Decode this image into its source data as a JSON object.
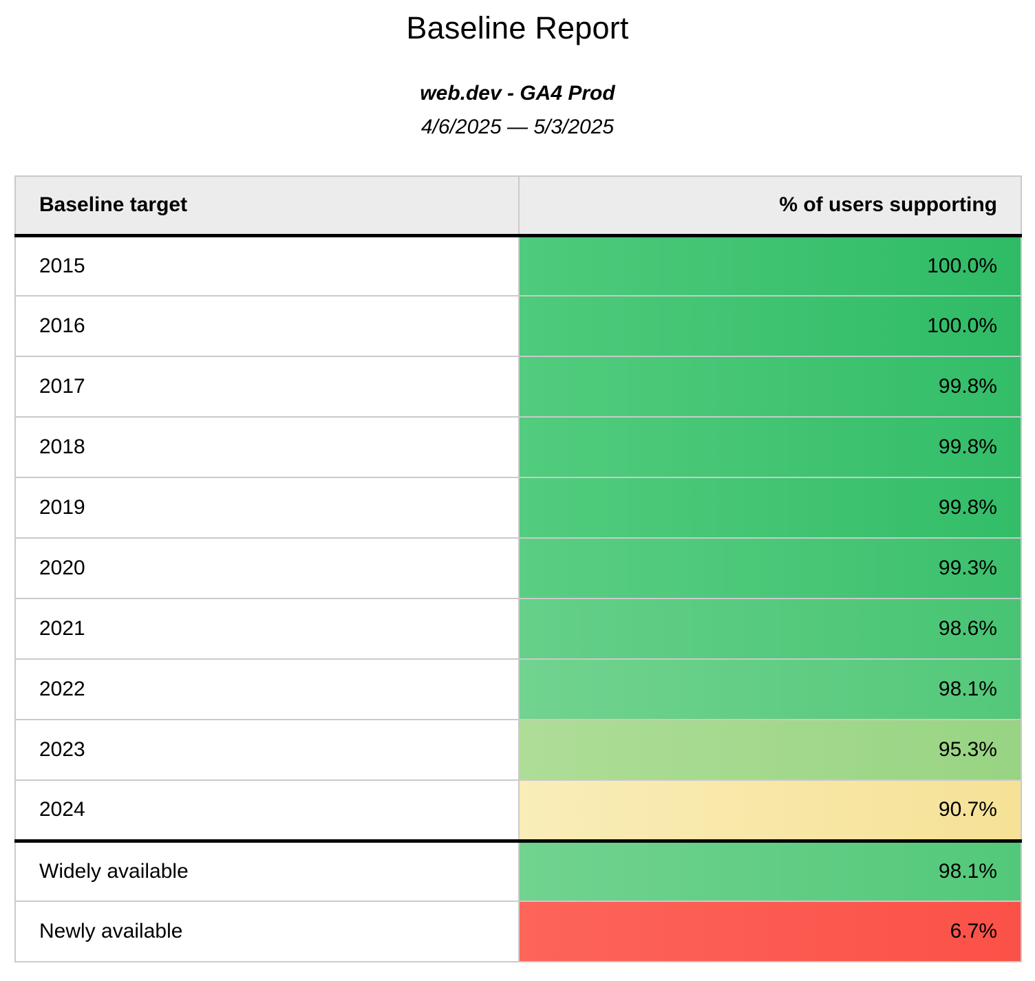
{
  "report": {
    "title": "Baseline Report",
    "subtitle": "web.dev - GA4 Prod",
    "date_range": "4/6/2025 — 5/3/2025"
  },
  "table": {
    "columns": [
      "Baseline target",
      "% of users supporting"
    ],
    "year_rows": [
      {
        "label": "2015",
        "value": "100.0%",
        "color_left": "#4ecb7c",
        "color_right": "#2fbb66"
      },
      {
        "label": "2016",
        "value": "100.0%",
        "color_left": "#4ecb7c",
        "color_right": "#2fbb66"
      },
      {
        "label": "2017",
        "value": "99.8%",
        "color_left": "#52cc7e",
        "color_right": "#33bd68"
      },
      {
        "label": "2018",
        "value": "99.8%",
        "color_left": "#52cc7e",
        "color_right": "#33bd68"
      },
      {
        "label": "2019",
        "value": "99.8%",
        "color_left": "#52cc7e",
        "color_right": "#33bd68"
      },
      {
        "label": "2020",
        "value": "99.3%",
        "color_left": "#5ace83",
        "color_right": "#3bc06d"
      },
      {
        "label": "2021",
        "value": "98.6%",
        "color_left": "#65d089",
        "color_right": "#47c473"
      },
      {
        "label": "2022",
        "value": "98.1%",
        "color_left": "#71d38f",
        "color_right": "#53c87a"
      },
      {
        "label": "2023",
        "value": "95.3%",
        "color_left": "#aedd97",
        "color_right": "#98d483"
      },
      {
        "label": "2024",
        "value": "90.7%",
        "color_left": "#f9edb8",
        "color_right": "#f6e196"
      }
    ],
    "availability_rows": [
      {
        "label": "Widely available",
        "value": "98.1%",
        "color_left": "#71d38f",
        "color_right": "#53c87a"
      },
      {
        "label": "Newly available",
        "value": "6.7%",
        "color_left": "#fd645a",
        "color_right": "#fb5148"
      }
    ]
  },
  "colors": {
    "header_background": "#ececec",
    "grid_border": "#cacaca",
    "section_border": "#000000",
    "text": "#000000"
  }
}
